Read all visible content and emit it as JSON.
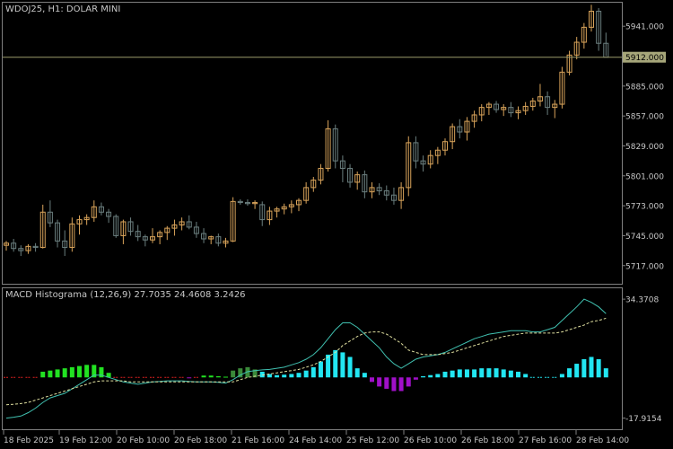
{
  "main_chart": {
    "title": "WDOJ25, H1:  DOLAR MINI",
    "current_price": "5912.000",
    "price_ticks": [
      "5941.000",
      "5912.000",
      "5885.000",
      "5857.000",
      "5829.000",
      "5801.000",
      "5773.000",
      "5745.000",
      "5717.000"
    ]
  },
  "indicator": {
    "title": "MACD Histograma (12,26,9) 27.7035 24.4608 3.2426",
    "ticks": [
      "34.3708",
      "-17.9154"
    ]
  },
  "time_axis": [
    "18 Feb 2025",
    "19 Feb 12:00",
    "20 Feb 10:00",
    "20 Feb 18:00",
    "21 Feb 16:00",
    "24 Feb 14:00",
    "25 Feb 12:00",
    "26 Feb 10:00",
    "26 Feb 18:00",
    "27 Feb 16:00",
    "28 Feb 14:00"
  ],
  "colors": {
    "background": "#000000",
    "bull": "#d8a35a",
    "bear": "#6b7f7f",
    "frame": "#7f7f7f",
    "price_line": "#9a9a6a",
    "hist_green": "#22e222",
    "hist_darkgreen": "#3a8a3a",
    "hist_cyan": "#22e6f2",
    "hist_purple": "#a010c8",
    "hist_red": "#e02020",
    "macd_line": "#40c0b0",
    "signal_line": "#e0e0a0"
  },
  "chart_data": [
    {
      "type": "candlestick",
      "title": "WDOJ25, H1:  DOLAR MINI",
      "ylim": [
        5700,
        5963
      ],
      "candles": [
        [
          5736,
          5740,
          5731,
          5738
        ],
        [
          5738,
          5742,
          5730,
          5733
        ],
        [
          5733,
          5736,
          5726,
          5731
        ],
        [
          5731,
          5737,
          5728,
          5735
        ],
        [
          5735,
          5738,
          5730,
          5734
        ],
        [
          5734,
          5774,
          5733,
          5767
        ],
        [
          5767,
          5778,
          5753,
          5757
        ],
        [
          5757,
          5760,
          5734,
          5740
        ],
        [
          5740,
          5750,
          5726,
          5734
        ],
        [
          5734,
          5762,
          5730,
          5756
        ],
        [
          5756,
          5764,
          5746,
          5760
        ],
        [
          5760,
          5765,
          5755,
          5762
        ],
        [
          5762,
          5778,
          5758,
          5772
        ],
        [
          5772,
          5776,
          5764,
          5767
        ],
        [
          5767,
          5770,
          5757,
          5763
        ],
        [
          5763,
          5765,
          5743,
          5745
        ],
        [
          5745,
          5760,
          5737,
          5758
        ],
        [
          5758,
          5762,
          5745,
          5749
        ],
        [
          5749,
          5755,
          5740,
          5744
        ],
        [
          5744,
          5746,
          5735,
          5741
        ],
        [
          5741,
          5752,
          5738,
          5744
        ],
        [
          5744,
          5750,
          5737,
          5748
        ],
        [
          5748,
          5754,
          5741,
          5752
        ],
        [
          5752,
          5760,
          5745,
          5755
        ],
        [
          5755,
          5762,
          5750,
          5758
        ],
        [
          5758,
          5764,
          5751,
          5753
        ],
        [
          5753,
          5758,
          5743,
          5747
        ],
        [
          5747,
          5752,
          5738,
          5742
        ],
        [
          5742,
          5745,
          5737,
          5744
        ],
        [
          5744,
          5747,
          5735,
          5738
        ],
        [
          5738,
          5743,
          5734,
          5740
        ],
        [
          5740,
          5781,
          5739,
          5777
        ],
        [
          5777,
          5779,
          5774,
          5776
        ],
        [
          5776,
          5779,
          5773,
          5775
        ],
        [
          5775,
          5778,
          5770,
          5776
        ],
        [
          5774,
          5777,
          5754,
          5760
        ],
        [
          5760,
          5772,
          5755,
          5768
        ],
        [
          5768,
          5772,
          5762,
          5770
        ],
        [
          5770,
          5775,
          5765,
          5772
        ],
        [
          5772,
          5778,
          5766,
          5774
        ],
        [
          5774,
          5780,
          5768,
          5778
        ],
        [
          5778,
          5795,
          5775,
          5790
        ],
        [
          5790,
          5800,
          5786,
          5797
        ],
        [
          5797,
          5812,
          5793,
          5808
        ],
        [
          5808,
          5853,
          5805,
          5845
        ],
        [
          5845,
          5849,
          5808,
          5815
        ],
        [
          5815,
          5820,
          5795,
          5808
        ],
        [
          5808,
          5812,
          5790,
          5795
        ],
        [
          5795,
          5805,
          5788,
          5802
        ],
        [
          5802,
          5806,
          5780,
          5786
        ],
        [
          5786,
          5795,
          5780,
          5790
        ],
        [
          5790,
          5794,
          5783,
          5787
        ],
        [
          5787,
          5792,
          5778,
          5783
        ],
        [
          5783,
          5790,
          5774,
          5778
        ],
        [
          5778,
          5795,
          5770,
          5790
        ],
        [
          5790,
          5838,
          5782,
          5832
        ],
        [
          5832,
          5838,
          5808,
          5815
        ],
        [
          5815,
          5820,
          5805,
          5812
        ],
        [
          5812,
          5825,
          5808,
          5820
        ],
        [
          5820,
          5828,
          5812,
          5825
        ],
        [
          5825,
          5836,
          5820,
          5833
        ],
        [
          5833,
          5850,
          5826,
          5847
        ],
        [
          5847,
          5854,
          5836,
          5842
        ],
        [
          5842,
          5856,
          5834,
          5852
        ],
        [
          5852,
          5862,
          5846,
          5858
        ],
        [
          5858,
          5868,
          5852,
          5865
        ],
        [
          5865,
          5870,
          5858,
          5868
        ],
        [
          5868,
          5871,
          5860,
          5863
        ],
        [
          5863,
          5868,
          5857,
          5865
        ],
        [
          5865,
          5870,
          5856,
          5860
        ],
        [
          5860,
          5866,
          5854,
          5862
        ],
        [
          5862,
          5870,
          5858,
          5866
        ],
        [
          5866,
          5874,
          5862,
          5871
        ],
        [
          5871,
          5887,
          5866,
          5875
        ],
        [
          5875,
          5880,
          5858,
          5865
        ],
        [
          5865,
          5872,
          5855,
          5868
        ],
        [
          5868,
          5903,
          5864,
          5898
        ],
        [
          5898,
          5918,
          5895,
          5914
        ],
        [
          5914,
          5931,
          5910,
          5926
        ],
        [
          5926,
          5944,
          5920,
          5940
        ],
        [
          5940,
          5961,
          5936,
          5955
        ],
        [
          5955,
          5958,
          5918,
          5925
        ],
        [
          5925,
          5935,
          5913,
          5912
        ]
      ]
    },
    {
      "type": "bar+line",
      "title": "MACD Histograma (12,26,9) 27.7035 24.4608 3.2426",
      "ylim": [
        -22,
        38
      ],
      "histogram": [
        0,
        0,
        0,
        0,
        0,
        2.5,
        3,
        3.5,
        4,
        4.5,
        5,
        5.5,
        5.5,
        4.5,
        2,
        0,
        0,
        0,
        0,
        0,
        0,
        0,
        0,
        0,
        0,
        -0.3,
        0,
        0.8,
        0.8,
        0.5,
        0.3,
        3,
        4,
        4.5,
        3.5,
        2.5,
        1.5,
        1,
        1.2,
        1.5,
        2,
        3,
        4.5,
        7,
        10,
        12,
        11,
        9,
        4,
        2,
        -2,
        -4,
        -5,
        -6,
        -6,
        -4,
        -1,
        0.5,
        1,
        1.5,
        2.5,
        3,
        3.5,
        3.5,
        3.5,
        4,
        4,
        4,
        3.5,
        3,
        2.5,
        1.5,
        0,
        0,
        0,
        0,
        1.5,
        4,
        6,
        8,
        9,
        8,
        4
      ],
      "macd": [
        -17.9,
        -17.5,
        -17,
        -15.5,
        -13.5,
        -11,
        -9,
        -8,
        -7,
        -5,
        -3,
        -1,
        1,
        1,
        0,
        -1,
        -2,
        -2.5,
        -3,
        -2.5,
        -2,
        -1.8,
        -1.5,
        -1.5,
        -1.5,
        -1.8,
        -2,
        -2,
        -2,
        -2.2,
        -2.5,
        -1,
        1,
        2.5,
        3,
        3.3,
        3.5,
        4,
        4.5,
        5.5,
        6.5,
        8,
        10,
        13,
        17,
        21,
        24,
        24,
        22,
        19,
        16,
        13,
        9,
        6,
        4,
        6,
        8,
        9,
        9.5,
        10,
        11,
        12.5,
        14,
        15.5,
        17,
        18,
        19,
        19.5,
        20,
        20.5,
        20.5,
        20.5,
        20,
        20,
        21,
        22,
        25,
        28,
        31,
        34.4,
        33,
        31,
        28
      ],
      "signal": [
        -12,
        -11.8,
        -11.5,
        -11,
        -10,
        -9,
        -8,
        -7,
        -6,
        -5,
        -4,
        -3,
        -2,
        -1.5,
        -1.5,
        -1.5,
        -1.5,
        -2,
        -2,
        -2,
        -2,
        -2,
        -2,
        -2,
        -2,
        -2,
        -2,
        -2,
        -2,
        -2,
        -2,
        -2,
        -1,
        0,
        0.5,
        1,
        1.5,
        2,
        2.5,
        3,
        3.5,
        4.5,
        5.5,
        7,
        9,
        11,
        14,
        16,
        18,
        19.5,
        20,
        20,
        19,
        17,
        15,
        12,
        11,
        10,
        10,
        10,
        10.5,
        11,
        12,
        13,
        14,
        15,
        16,
        17,
        18,
        18.5,
        19,
        19.5,
        19.5,
        19.5,
        19.5,
        19.5,
        20,
        21,
        22,
        23,
        24.5,
        25,
        26
      ]
    }
  ]
}
